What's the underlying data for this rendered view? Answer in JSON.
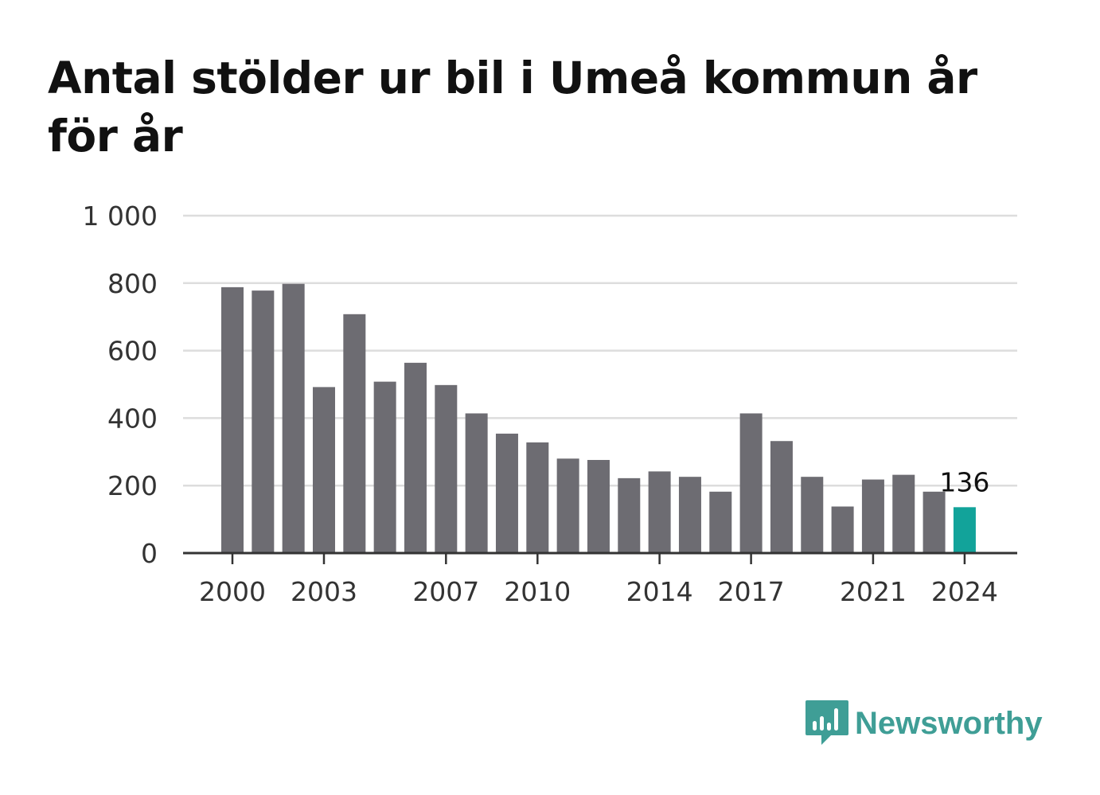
{
  "title": "Antal stölder ur bil i Umeå kommun år för år",
  "colors": {
    "bar": "#6d6c72",
    "highlight": "#12a39a",
    "grid": "#dddddd",
    "axis": "#333333",
    "brand": "#3f9e96"
  },
  "brand": {
    "name": "Newsworthy",
    "icon": "chart-speech-bubble-icon"
  },
  "chart_data": {
    "type": "bar",
    "title": "Antal stölder ur bil i Umeå kommun år för år",
    "xlabel": "",
    "ylabel": "",
    "categories": [
      "2000",
      "2001",
      "2002",
      "2003",
      "2004",
      "2005",
      "2006",
      "2007",
      "2008",
      "2009",
      "2010",
      "2011",
      "2012",
      "2013",
      "2014",
      "2015",
      "2016",
      "2017",
      "2018",
      "2019",
      "2020",
      "2021",
      "2022",
      "2023",
      "2024"
    ],
    "values": [
      788,
      778,
      798,
      492,
      708,
      508,
      564,
      498,
      414,
      354,
      328,
      280,
      276,
      222,
      242,
      226,
      182,
      414,
      332,
      226,
      138,
      218,
      232,
      182,
      136
    ],
    "ylim": [
      0,
      1000
    ],
    "yticks": [
      0,
      200,
      400,
      600,
      800,
      1000
    ],
    "ytick_labels": [
      "0",
      "200",
      "400",
      "600",
      "800",
      "1 000"
    ],
    "xticks": [
      "2000",
      "2003",
      "2007",
      "2010",
      "2014",
      "2017",
      "2021",
      "2024"
    ],
    "highlight_category": "2024",
    "highlight_label": "136",
    "grid": true,
    "legend": "none"
  }
}
